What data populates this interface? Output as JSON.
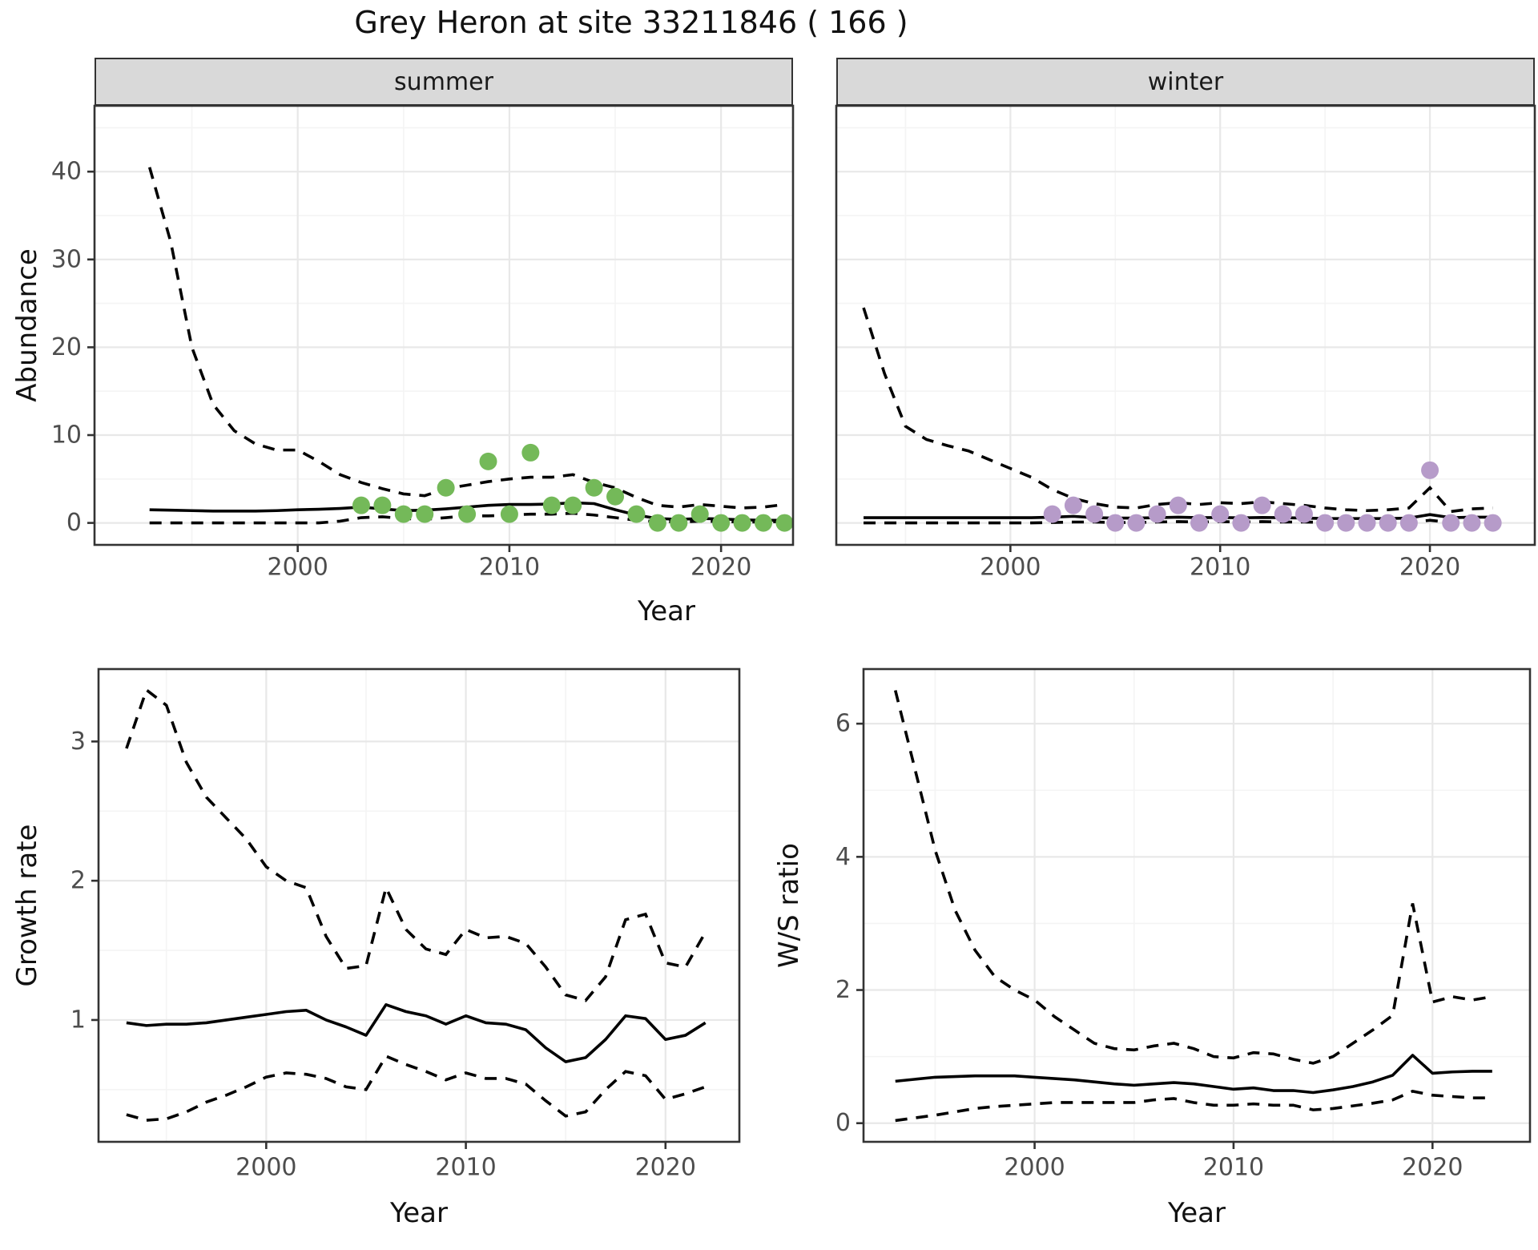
{
  "labels": {
    "title": "Grey Heron at site 33211846 ( 166 )",
    "facet_summer": "summer",
    "facet_winter": "winter",
    "y_axis_top": "Abundance",
    "y_axis_growth": "Growth rate",
    "y_axis_ws": "W/S ratio",
    "x_axis_top": "Year",
    "x_axis_growth": "Year",
    "x_axis_ws": "Year"
  },
  "colors": {
    "summer_points": "#74b959",
    "winter_points": "#b69bc9",
    "fit_line": "#000000",
    "ci_line": "#000000",
    "strip_bg": "#d9d9d9",
    "panel_border": "#333333",
    "grid_major": "#e8e8e8",
    "grid_minor": "#f4f4f4",
    "tick_text": "#4d4d4d",
    "tick_mark": "#333333"
  },
  "chart_data": [
    {
      "id": "abundance_summer",
      "type": "scatter",
      "facet": "summer",
      "xlabel": "Year",
      "ylabel": "Abundance",
      "xlim": [
        1990.4,
        2023.4
      ],
      "ylim": [
        -2.5,
        47.5
      ],
      "x_ticks": [
        2000,
        2010,
        2020
      ],
      "x_minor": [
        1995,
        2005,
        2015
      ],
      "y_ticks": [
        0,
        10,
        20,
        30,
        40
      ],
      "y_minor": [
        5,
        15,
        25,
        35,
        45
      ],
      "grid": true,
      "legend": "none",
      "years": [
        1993,
        1994,
        1995,
        1996,
        1997,
        1998,
        1999,
        2000,
        2001,
        2002,
        2003,
        2004,
        2005,
        2006,
        2007,
        2008,
        2009,
        2010,
        2011,
        2012,
        2013,
        2014,
        2015,
        2016,
        2017,
        2018,
        2019,
        2020,
        2021,
        2022,
        2023
      ],
      "fit_median": [
        1.5,
        1.45,
        1.4,
        1.35,
        1.35,
        1.35,
        1.4,
        1.5,
        1.55,
        1.65,
        1.8,
        1.6,
        1.4,
        1.45,
        1.6,
        1.8,
        2.0,
        2.1,
        2.1,
        2.15,
        2.3,
        2.2,
        1.5,
        0.9,
        0.5,
        0.4,
        0.5,
        0.45,
        0.35,
        0.3,
        0.3
      ],
      "fit_upper": [
        40.5,
        32,
        20,
        13.5,
        10.5,
        9,
        8.3,
        8.3,
        7,
        5.5,
        4.6,
        3.9,
        3.3,
        3.1,
        3.9,
        4.3,
        4.7,
        5.0,
        5.2,
        5.2,
        5.5,
        4.6,
        4.0,
        2.9,
        2.0,
        1.8,
        2.1,
        1.9,
        1.7,
        1.8,
        2.1
      ],
      "fit_lower": [
        0,
        0,
        0,
        0,
        0,
        0,
        0,
        0,
        0,
        0.2,
        0.6,
        0.7,
        0.5,
        0.4,
        0.6,
        0.8,
        0.8,
        0.9,
        1.0,
        1.0,
        1.1,
        0.9,
        0.6,
        0.3,
        0.15,
        0.1,
        0.2,
        0.15,
        0.1,
        0.1,
        0.15
      ],
      "obs_years": [
        2003,
        2004,
        2005,
        2006,
        2007,
        2008,
        2009,
        2010,
        2011,
        2012,
        2013,
        2014,
        2015,
        2016,
        2017,
        2018,
        2019,
        2020,
        2021,
        2022,
        2023
      ],
      "obs_values": [
        2,
        2,
        1,
        1,
        4,
        1,
        7,
        1,
        8,
        2,
        2,
        4,
        3,
        1,
        0,
        0,
        1,
        0,
        0,
        0,
        0
      ]
    },
    {
      "id": "abundance_winter",
      "type": "scatter",
      "facet": "winter",
      "xlabel": "Year",
      "ylabel": "Abundance",
      "xlim": [
        1991.7,
        2025.0
      ],
      "ylim": [
        -2.5,
        47.5
      ],
      "x_ticks": [
        2000,
        2010,
        2020
      ],
      "x_minor": [
        1995,
        2005,
        2015
      ],
      "y_ticks": [
        0,
        10,
        20,
        30,
        40
      ],
      "y_minor": [
        5,
        15,
        25,
        35,
        45
      ],
      "grid": true,
      "legend": "none",
      "years": [
        1993,
        1994,
        1995,
        1996,
        1997,
        1998,
        1999,
        2000,
        2001,
        2002,
        2003,
        2004,
        2005,
        2006,
        2007,
        2008,
        2009,
        2010,
        2011,
        2012,
        2013,
        2014,
        2015,
        2016,
        2017,
        2018,
        2019,
        2020,
        2021,
        2022,
        2023
      ],
      "fit_median": [
        0.6,
        0.6,
        0.6,
        0.6,
        0.6,
        0.6,
        0.6,
        0.6,
        0.6,
        0.65,
        0.75,
        0.6,
        0.55,
        0.55,
        0.6,
        0.65,
        0.6,
        0.62,
        0.58,
        0.62,
        0.6,
        0.55,
        0.5,
        0.5,
        0.5,
        0.5,
        0.55,
        0.95,
        0.6,
        0.65,
        0.65
      ],
      "fit_upper": [
        24.5,
        17,
        11,
        9.5,
        8.8,
        8.2,
        7.2,
        6.2,
        5.2,
        3.8,
        2.8,
        2.2,
        1.8,
        1.7,
        2.1,
        2.3,
        2.1,
        2.3,
        2.2,
        2.4,
        2.2,
        2.0,
        1.7,
        1.5,
        1.4,
        1.5,
        1.7,
        4.0,
        1.3,
        1.6,
        1.7
      ],
      "fit_lower": [
        0,
        0,
        0,
        0,
        0,
        0,
        0,
        0,
        0,
        0.05,
        0.1,
        0.1,
        0.05,
        0.05,
        0.1,
        0.15,
        0.1,
        0.15,
        0.1,
        0.15,
        0.1,
        0.1,
        0.05,
        0.05,
        0.05,
        0.05,
        0.05,
        0.3,
        0.05,
        0.05,
        0.1
      ],
      "obs_years": [
        2002,
        2003,
        2004,
        2005,
        2006,
        2007,
        2008,
        2009,
        2010,
        2011,
        2012,
        2013,
        2014,
        2015,
        2016,
        2017,
        2018,
        2019,
        2020,
        2021,
        2022,
        2023
      ],
      "obs_values": [
        1,
        2,
        1,
        0,
        0,
        1,
        2,
        0,
        1,
        0,
        2,
        1,
        1,
        0,
        0,
        0,
        0,
        0,
        6,
        0,
        0,
        0
      ]
    },
    {
      "id": "growth_rate",
      "type": "line",
      "facet": null,
      "xlabel": "Year",
      "ylabel": "Growth rate",
      "xlim": [
        1991.6,
        2023.7
      ],
      "ylim": [
        0.125,
        3.52
      ],
      "x_ticks": [
        2000,
        2010,
        2020
      ],
      "x_minor": [
        1995,
        2005,
        2015
      ],
      "y_ticks": [
        1,
        2,
        3
      ],
      "y_minor": [
        0.5,
        1.5,
        2.5
      ],
      "grid": true,
      "legend": "none",
      "years": [
        1993,
        1994,
        1995,
        1996,
        1997,
        1998,
        1999,
        2000,
        2001,
        2002,
        2003,
        2004,
        2005,
        2006,
        2007,
        2008,
        2009,
        2010,
        2011,
        2012,
        2013,
        2014,
        2015,
        2016,
        2017,
        2018,
        2019,
        2020,
        2021,
        2022
      ],
      "fit_median": [
        0.98,
        0.96,
        0.97,
        0.97,
        0.98,
        1.0,
        1.02,
        1.04,
        1.06,
        1.07,
        1.0,
        0.95,
        0.89,
        1.11,
        1.06,
        1.03,
        0.97,
        1.03,
        0.98,
        0.97,
        0.93,
        0.8,
        0.7,
        0.73,
        0.86,
        1.03,
        1.01,
        0.86,
        0.89,
        0.98
      ],
      "fit_upper": [
        2.95,
        3.37,
        3.26,
        2.85,
        2.6,
        2.45,
        2.3,
        2.1,
        2.0,
        1.95,
        1.6,
        1.37,
        1.39,
        1.95,
        1.65,
        1.51,
        1.47,
        1.65,
        1.59,
        1.6,
        1.55,
        1.38,
        1.18,
        1.14,
        1.31,
        1.72,
        1.76,
        1.41,
        1.38,
        1.63
      ],
      "fit_lower": [
        0.32,
        0.28,
        0.29,
        0.34,
        0.41,
        0.46,
        0.52,
        0.59,
        0.62,
        0.61,
        0.58,
        0.52,
        0.5,
        0.74,
        0.68,
        0.63,
        0.57,
        0.62,
        0.58,
        0.58,
        0.54,
        0.42,
        0.31,
        0.34,
        0.5,
        0.63,
        0.6,
        0.43,
        0.47,
        0.52
      ],
      "obs_years": [],
      "obs_values": []
    },
    {
      "id": "ws_ratio",
      "type": "line",
      "facet": null,
      "xlabel": "Year",
      "ylabel": "W/S ratio",
      "xlim": [
        1991.4,
        2024.9
      ],
      "ylim": [
        -0.28,
        6.82
      ],
      "x_ticks": [
        2000,
        2010,
        2020
      ],
      "x_minor": [
        1995,
        2005,
        2015
      ],
      "y_ticks": [
        0,
        2,
        4,
        6
      ],
      "y_minor": [
        1,
        3,
        5
      ],
      "grid": true,
      "legend": "none",
      "years": [
        1993,
        1994,
        1995,
        1996,
        1997,
        1998,
        1999,
        2000,
        2001,
        2002,
        2003,
        2004,
        2005,
        2006,
        2007,
        2008,
        2009,
        2010,
        2011,
        2012,
        2013,
        2014,
        2015,
        2016,
        2017,
        2018,
        2019,
        2020,
        2021,
        2022,
        2023
      ],
      "fit_median": [
        0.63,
        0.66,
        0.69,
        0.7,
        0.71,
        0.71,
        0.71,
        0.69,
        0.67,
        0.65,
        0.62,
        0.59,
        0.57,
        0.59,
        0.61,
        0.59,
        0.55,
        0.51,
        0.53,
        0.49,
        0.49,
        0.46,
        0.5,
        0.55,
        0.62,
        0.72,
        1.02,
        0.75,
        0.77,
        0.78,
        0.78
      ],
      "fit_upper": [
        6.5,
        5.3,
        4.1,
        3.2,
        2.6,
        2.2,
        2.0,
        1.85,
        1.6,
        1.4,
        1.2,
        1.12,
        1.1,
        1.16,
        1.2,
        1.12,
        1.0,
        0.98,
        1.06,
        1.04,
        0.96,
        0.9,
        1.0,
        1.2,
        1.4,
        1.62,
        3.3,
        1.82,
        1.9,
        1.85,
        1.9
      ],
      "fit_lower": [
        0.04,
        0.08,
        0.12,
        0.17,
        0.22,
        0.25,
        0.27,
        0.29,
        0.31,
        0.31,
        0.31,
        0.31,
        0.31,
        0.35,
        0.37,
        0.31,
        0.27,
        0.27,
        0.29,
        0.27,
        0.27,
        0.2,
        0.22,
        0.26,
        0.3,
        0.35,
        0.48,
        0.42,
        0.4,
        0.38,
        0.38
      ],
      "obs_years": [],
      "obs_values": []
    }
  ]
}
